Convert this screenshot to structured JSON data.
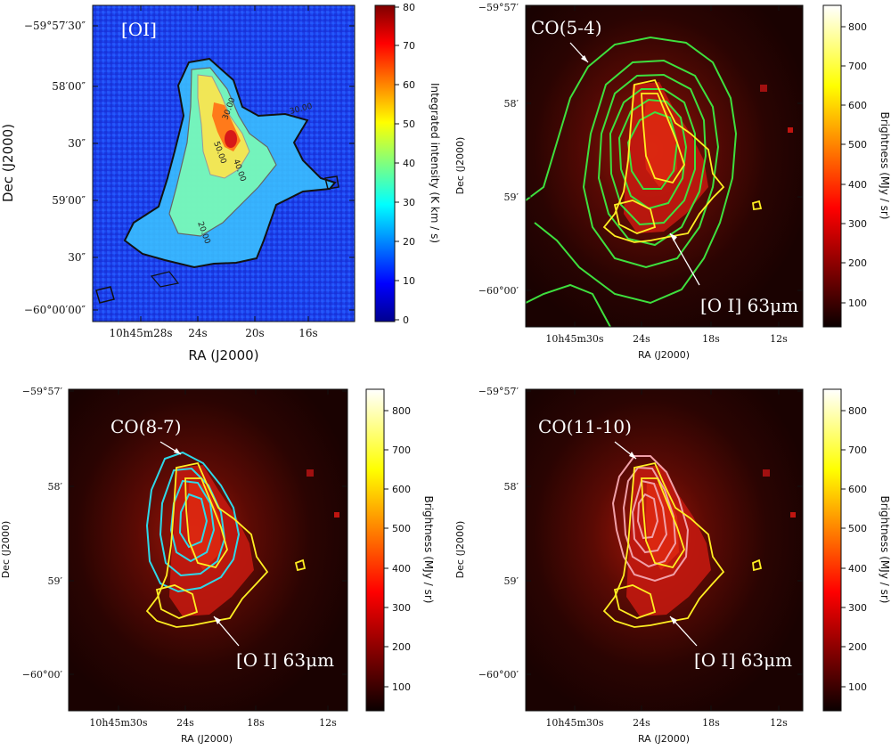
{
  "panels": [
    {
      "id": "oi",
      "tag": "[OI]",
      "ytick_labels": [
        "−59°57′30″",
        "58′00″",
        "30″",
        "59′00″",
        "30″",
        "−60°00′00″"
      ],
      "xtick_labels": [
        "10h45m28s",
        "24s",
        "20s",
        "16s"
      ],
      "xlabel": "RA (J2000)",
      "ylabel": "Dec (J2000)",
      "colorbar": {
        "label": "Integrated intensity (K km / s)",
        "ticks": [
          "0",
          "10",
          "20",
          "30",
          "40",
          "50",
          "60",
          "70",
          "80"
        ],
        "colormap": "jet"
      },
      "contour_labels": [
        "30.00",
        "50.00",
        "40.00",
        "30.00",
        "20.00"
      ]
    },
    {
      "id": "co54",
      "annotation_line": "CO(5-4)",
      "annotation_oi": "[O I] 63μm",
      "ytick_labels": [
        "−59°57′",
        "58′",
        "59′",
        "−60°00′"
      ],
      "xtick_labels": [
        "10h45m30s",
        "24s",
        "18s",
        "12s"
      ],
      "xlabel": "RA (J2000)",
      "ylabel": "Dec (J2000)",
      "colorbar": {
        "label": "Brightness (MJy / sr)",
        "ticks": [
          "100",
          "200",
          "300",
          "400",
          "500",
          "600",
          "700",
          "800"
        ],
        "colormap": "hot"
      },
      "contour_color": "#3ee03e"
    },
    {
      "id": "co87",
      "annotation_line": "CO(8-7)",
      "annotation_oi": "[O I] 63μm",
      "ytick_labels": [
        "−59°57′",
        "58′",
        "59′",
        "−60°00′"
      ],
      "xtick_labels": [
        "10h45m30s",
        "24s",
        "18s",
        "12s"
      ],
      "xlabel": "RA (J2000)",
      "ylabel": "Dec (J2000)",
      "colorbar": {
        "label": "Brightness (MJy / sr)",
        "ticks": [
          "100",
          "200",
          "300",
          "400",
          "500",
          "600",
          "700",
          "800"
        ],
        "colormap": "hot"
      },
      "contour_color": "#2ed8e8"
    },
    {
      "id": "co1110",
      "annotation_line": "CO(11-10)",
      "annotation_oi": "[O I] 63μm",
      "ytick_labels": [
        "−59°57′",
        "58′",
        "59′",
        "−60°00′"
      ],
      "xtick_labels": [
        "10h45m30s",
        "24s",
        "18s",
        "12s"
      ],
      "xlabel": "RA (J2000)",
      "ylabel": "Dec (J2000)",
      "colorbar": {
        "label": "Brightness (MJy / sr)",
        "ticks": [
          "100",
          "200",
          "300",
          "400",
          "500",
          "600",
          "700",
          "800"
        ],
        "colormap": "hot"
      },
      "contour_color": "#f0a0a8"
    }
  ],
  "oi_contour_color": "#ffee22"
}
